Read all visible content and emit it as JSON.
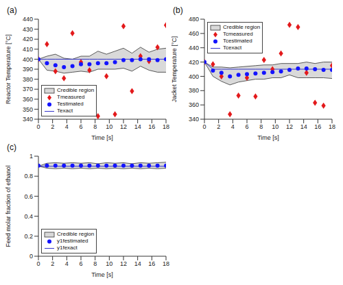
{
  "chart_data": [
    {
      "type": "line",
      "title": "(a)",
      "x_label": "Time [s]",
      "y_label": "Reactor Temperature [°C]",
      "x": [
        0,
        1.2,
        2.4,
        3.6,
        4.8,
        6,
        7.2,
        8.4,
        9.6,
        10.8,
        12,
        13.2,
        14.4,
        15.6,
        16.8,
        18
      ],
      "xlim": [
        0,
        18
      ],
      "xticks": [
        0,
        2,
        4,
        6,
        8,
        10,
        12,
        14,
        16,
        18
      ],
      "ylim": [
        340,
        440
      ],
      "yticks": [
        340,
        350,
        360,
        370,
        380,
        390,
        400,
        410,
        420,
        430,
        440
      ],
      "legend": "lower left",
      "series": [
        {
          "name": "Credible region",
          "type": "area",
          "color": "#d9d9d9",
          "lower": [
            400,
            389,
            388,
            386,
            387,
            388,
            387,
            390,
            390,
            390,
            391,
            388,
            393,
            389,
            387,
            387
          ],
          "upper": [
            400,
            403,
            405,
            401,
            400,
            403,
            403,
            408,
            405,
            408,
            411,
            406,
            412,
            407,
            410,
            411
          ]
        },
        {
          "name": "Tmeasured",
          "type": "scatter",
          "color": "#e31a1c",
          "marker": "diamond",
          "values": [
            400,
            415,
            388,
            381,
            426,
            397,
            389,
            343,
            383,
            345,
            433,
            368,
            403,
            398,
            412,
            434
          ]
        },
        {
          "name": "Testimated",
          "type": "scatter",
          "color": "#1414ff",
          "marker": "circle",
          "values": [
            400,
            396,
            394,
            392,
            393,
            395,
            395,
            396,
            396,
            397,
            399,
            399,
            400,
            400,
            399,
            400
          ]
        },
        {
          "name": "Texact",
          "type": "line",
          "color": "#3333cc",
          "values": [
            400,
            400,
            400,
            400,
            400,
            400,
            400,
            400,
            400,
            400,
            400,
            400,
            400,
            400,
            400,
            400
          ]
        }
      ]
    },
    {
      "type": "line",
      "title": "(b)",
      "x_label": "Time [s]",
      "y_label": "Jacket Temperature [°C]",
      "x": [
        0,
        1.2,
        2.4,
        3.6,
        4.8,
        6,
        7.2,
        8.4,
        9.6,
        10.8,
        12,
        13.2,
        14.4,
        15.6,
        16.8,
        18
      ],
      "xlim": [
        0,
        18
      ],
      "xticks": [
        0,
        2,
        4,
        6,
        8,
        10,
        12,
        14,
        16,
        18
      ],
      "ylim": [
        340,
        480
      ],
      "yticks": [
        340,
        360,
        380,
        400,
        420,
        440,
        460,
        480
      ],
      "legend": "upper left",
      "series": [
        {
          "name": "Credible region",
          "type": "area",
          "color": "#d9d9d9",
          "lower": [
            420,
            400,
            393,
            388,
            392,
            394,
            396,
            396,
            398,
            398,
            402,
            398,
            398,
            398,
            398,
            397
          ],
          "upper": [
            420,
            413,
            413,
            412,
            413,
            414,
            415,
            416,
            416,
            418,
            418,
            418,
            420,
            418,
            420,
            420
          ]
        },
        {
          "name": "Tcmeasured",
          "type": "scatter",
          "color": "#e31a1c",
          "marker": "diamond",
          "values": [
            420,
            417,
            400,
            347,
            373,
            398,
            372,
            423,
            410,
            432,
            472,
            469,
            405,
            363,
            359,
            415
          ]
        },
        {
          "name": "Tcestimated",
          "type": "scatter",
          "color": "#1414ff",
          "marker": "circle",
          "values": [
            420,
            408,
            405,
            400,
            402,
            403,
            404,
            405,
            406,
            407,
            409,
            411,
            411,
            410,
            409,
            409
          ]
        },
        {
          "name": "Tcexact",
          "type": "line",
          "color": "#3333cc",
          "values": [
            420,
            410,
            410,
            410,
            410,
            410,
            410,
            410,
            410,
            410,
            410,
            410,
            410,
            410,
            410,
            410
          ]
        }
      ]
    },
    {
      "type": "line",
      "title": "(c)",
      "x_label": "Time [s]",
      "y_label": "Feed molar fraction of ethanol",
      "x": [
        0,
        1.2,
        2.4,
        3.6,
        4.8,
        6,
        7.2,
        8.4,
        9.6,
        10.8,
        12,
        13.2,
        14.4,
        15.6,
        16.8,
        18
      ],
      "xlim": [
        0,
        18
      ],
      "xticks": [
        0,
        2,
        4,
        6,
        8,
        10,
        12,
        14,
        16,
        18
      ],
      "ylim": [
        0,
        1
      ],
      "yticks": [
        0,
        0.2,
        0.4,
        0.6,
        0.8,
        1
      ],
      "legend": "lower left",
      "series": [
        {
          "name": "Credible region",
          "type": "area",
          "color": "#d9d9d9",
          "lower": [
            0.9,
            0.88,
            0.875,
            0.88,
            0.875,
            0.88,
            0.875,
            0.88,
            0.875,
            0.88,
            0.875,
            0.88,
            0.875,
            0.88,
            0.875,
            0.88
          ],
          "upper": [
            0.9,
            0.93,
            0.935,
            0.93,
            0.935,
            0.93,
            0.935,
            0.925,
            0.935,
            0.93,
            0.935,
            0.925,
            0.935,
            0.93,
            0.935,
            0.94
          ]
        },
        {
          "name": "y1festimated",
          "type": "scatter",
          "color": "#1414ff",
          "marker": "circle",
          "values": [
            0.905,
            0.905,
            0.905,
            0.905,
            0.905,
            0.905,
            0.905,
            0.905,
            0.905,
            0.905,
            0.905,
            0.905,
            0.905,
            0.905,
            0.905,
            0.905
          ]
        },
        {
          "name": "y1fexact",
          "type": "line",
          "color": "#3333cc",
          "values": [
            0.9,
            0.9,
            0.9,
            0.9,
            0.9,
            0.9,
            0.9,
            0.9,
            0.9,
            0.9,
            0.9,
            0.9,
            0.9,
            0.9,
            0.9,
            0.9
          ]
        }
      ]
    }
  ]
}
